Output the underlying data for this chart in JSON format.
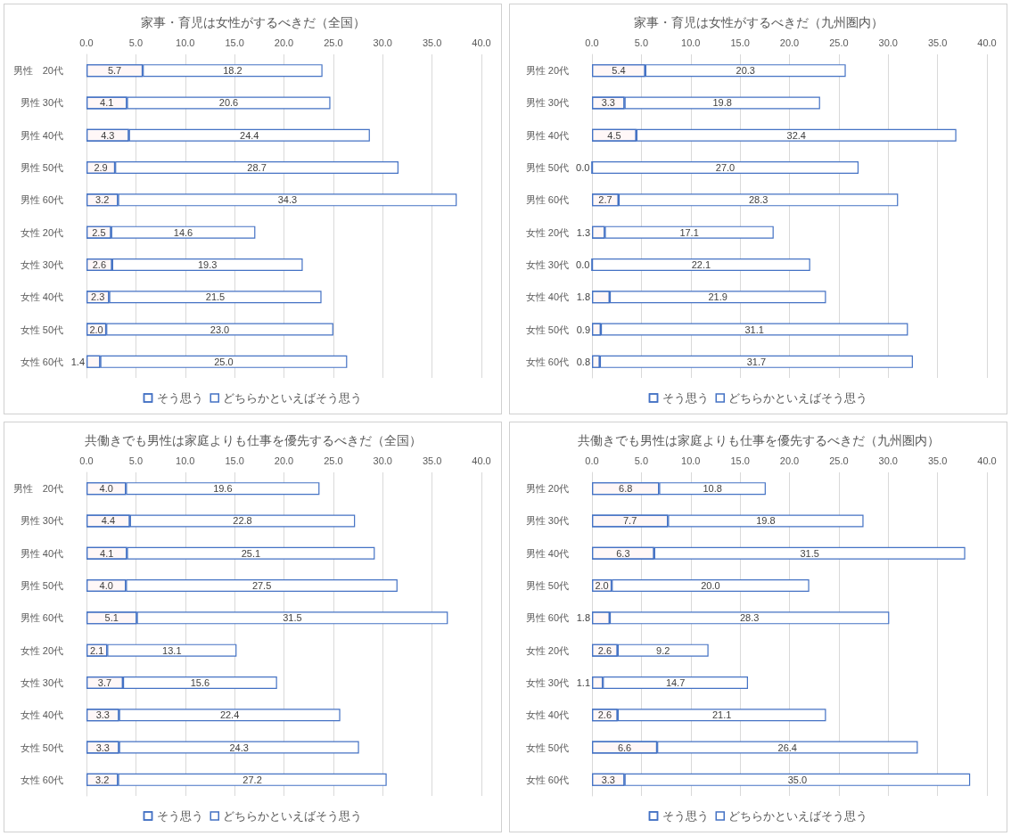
{
  "chart_data": [
    {
      "type": "bar",
      "orientation": "horizontal",
      "stacked": true,
      "title": "家事・育児は女性がするべきだ（全国）",
      "categories": [
        "男性　20代",
        "男性 30代",
        "男性 40代",
        "男性 50代",
        "男性 60代",
        "女性 20代",
        "女性 30代",
        "女性 40代",
        "女性 50代",
        "女性 60代"
      ],
      "series": [
        {
          "name": "そう思う",
          "color": "#4472c4",
          "values": [
            5.7,
            4.1,
            4.3,
            2.9,
            3.2,
            2.5,
            2.6,
            2.3,
            2.0,
            1.4
          ],
          "value_labels": [
            "5.7",
            "4.1",
            "4.3",
            "2.9",
            "3.2",
            "2.5",
            "2.6",
            "2.3",
            "2.0",
            "1.4"
          ]
        },
        {
          "name": "どちらかといえばそう思う",
          "color": "#4472c4",
          "values": [
            18.2,
            20.6,
            24.4,
            28.7,
            34.3,
            14.6,
            19.3,
            21.5,
            23.0,
            25.0
          ],
          "value_labels": [
            "18.2",
            "20.6",
            "24.4",
            "28.7",
            "34.3",
            "14.6",
            "19.3",
            "21.5",
            "23.0",
            "25.0"
          ]
        }
      ],
      "xlim": [
        0,
        40
      ],
      "xticks": [
        {
          "value": 0,
          "label": "0.0"
        },
        {
          "value": 5,
          "label": "5.0"
        },
        {
          "value": 10,
          "label": "10.0"
        },
        {
          "value": 15,
          "label": "15.0"
        },
        {
          "value": 20,
          "label": "20.0"
        },
        {
          "value": 25,
          "label": "25.0"
        },
        {
          "value": 30,
          "label": "30.0"
        },
        {
          "value": 35,
          "label": "35.0"
        },
        {
          "value": 40,
          "label": "40.0"
        }
      ],
      "grid": "x",
      "legend": "bottom"
    },
    {
      "type": "bar",
      "orientation": "horizontal",
      "stacked": true,
      "title": "家事・育児は女性がするべきだ（九州圏内）",
      "categories": [
        "男性 20代",
        "男性 30代",
        "男性 40代",
        "男性 50代",
        "男性 60代",
        "女性 20代",
        "女性 30代",
        "女性 40代",
        "女性 50代",
        "女性 60代"
      ],
      "series": [
        {
          "name": "そう思う",
          "color": "#4472c4",
          "values": [
            5.4,
            3.3,
            4.5,
            0.0,
            2.7,
            1.3,
            0.0,
            1.8,
            0.9,
            0.8
          ],
          "value_labels": [
            "5.4",
            "3.3",
            "4.5",
            "0.0",
            "2.7",
            "1.3",
            "0.0",
            "1.8",
            "0.9",
            "0.8"
          ]
        },
        {
          "name": "どちらかといえばそう思う",
          "color": "#4472c4",
          "values": [
            20.3,
            19.8,
            32.4,
            27.0,
            28.3,
            17.1,
            22.1,
            21.9,
            31.1,
            31.7
          ],
          "value_labels": [
            "20.3",
            "19.8",
            "32.4",
            "27.0",
            "28.3",
            "17.1",
            "22.1",
            "21.9",
            "31.1",
            "31.7"
          ]
        }
      ],
      "xlim": [
        0,
        40
      ],
      "xticks": [
        {
          "value": 0,
          "label": "0.0"
        },
        {
          "value": 5,
          "label": "5.0"
        },
        {
          "value": 10,
          "label": "10.0"
        },
        {
          "value": 15,
          "label": "15.0"
        },
        {
          "value": 20,
          "label": "20.0"
        },
        {
          "value": 25,
          "label": "25.0"
        },
        {
          "value": 30,
          "label": "30.0"
        },
        {
          "value": 35,
          "label": "35.0"
        },
        {
          "value": 40,
          "label": "40.0"
        }
      ],
      "grid": "x",
      "legend": "bottom"
    },
    {
      "type": "bar",
      "orientation": "horizontal",
      "stacked": true,
      "title": "共働きでも男性は家庭よりも仕事を優先するべきだ（全国）",
      "categories": [
        "男性　20代",
        "男性 30代",
        "男性 40代",
        "男性 50代",
        "男性 60代",
        "女性 20代",
        "女性 30代",
        "女性 40代",
        "女性 50代",
        "女性 60代"
      ],
      "series": [
        {
          "name": "そう思う",
          "color": "#4472c4",
          "values": [
            4.0,
            4.4,
            4.1,
            4.0,
            5.1,
            2.1,
            3.7,
            3.3,
            3.3,
            3.2
          ],
          "value_labels": [
            "4.0",
            "4.4",
            "4.1",
            "4.0",
            "5.1",
            "2.1",
            "3.7",
            "3.3",
            "3.3",
            "3.2"
          ]
        },
        {
          "name": "どちらかといえばそう思う",
          "color": "#4472c4",
          "values": [
            19.6,
            22.8,
            25.1,
            27.5,
            31.5,
            13.1,
            15.6,
            22.4,
            24.3,
            27.2
          ],
          "value_labels": [
            "19.6",
            "22.8",
            "25.1",
            "27.5",
            "31.5",
            "13.1",
            "15.6",
            "22.4",
            "24.3",
            "27.2"
          ]
        }
      ],
      "xlim": [
        0,
        40
      ],
      "xticks": [
        {
          "value": 0,
          "label": "0.0"
        },
        {
          "value": 5,
          "label": "5.0"
        },
        {
          "value": 10,
          "label": "10.0"
        },
        {
          "value": 15,
          "label": "15.0"
        },
        {
          "value": 20,
          "label": "20.0"
        },
        {
          "value": 25,
          "label": "25.0"
        },
        {
          "value": 30,
          "label": "30.0"
        },
        {
          "value": 35,
          "label": "35.0"
        },
        {
          "value": 40,
          "label": "40.0"
        }
      ],
      "grid": "x",
      "legend": "bottom"
    },
    {
      "type": "bar",
      "orientation": "horizontal",
      "stacked": true,
      "title": "共働きでも男性は家庭よりも仕事を優先するべきだ（九州圏内）",
      "categories": [
        "男性 20代",
        "男性 30代",
        "男性 40代",
        "男性 50代",
        "男性 60代",
        "女性 20代",
        "女性 30代",
        "女性 40代",
        "女性 50代",
        "女性 60代"
      ],
      "series": [
        {
          "name": "そう思う",
          "color": "#4472c4",
          "values": [
            6.8,
            7.7,
            6.3,
            2.0,
            1.8,
            2.6,
            1.1,
            2.6,
            6.6,
            3.3
          ],
          "value_labels": [
            "6.8",
            "7.7",
            "6.3",
            "2.0",
            "1.8",
            "2.6",
            "1.1",
            "2.6",
            "6.6",
            "3.3"
          ]
        },
        {
          "name": "どちらかといえばそう思う",
          "color": "#4472c4",
          "values": [
            10.8,
            19.8,
            31.5,
            20.0,
            28.3,
            9.2,
            14.7,
            21.1,
            26.4,
            35.0
          ],
          "value_labels": [
            "10.8",
            "19.8",
            "31.5",
            "20.0",
            "28.3",
            "9.2",
            "14.7",
            "21.1",
            "26.4",
            "35.0"
          ]
        }
      ],
      "xlim": [
        0,
        40
      ],
      "xticks": [
        {
          "value": 0,
          "label": "0.0"
        },
        {
          "value": 5,
          "label": "5.0"
        },
        {
          "value": 10,
          "label": "10.0"
        },
        {
          "value": 15,
          "label": "15.0"
        },
        {
          "value": 20,
          "label": "20.0"
        },
        {
          "value": 25,
          "label": "25.0"
        },
        {
          "value": 30,
          "label": "30.0"
        },
        {
          "value": 35,
          "label": "35.0"
        },
        {
          "value": 40,
          "label": "40.0"
        }
      ],
      "grid": "x",
      "legend": "bottom"
    }
  ]
}
